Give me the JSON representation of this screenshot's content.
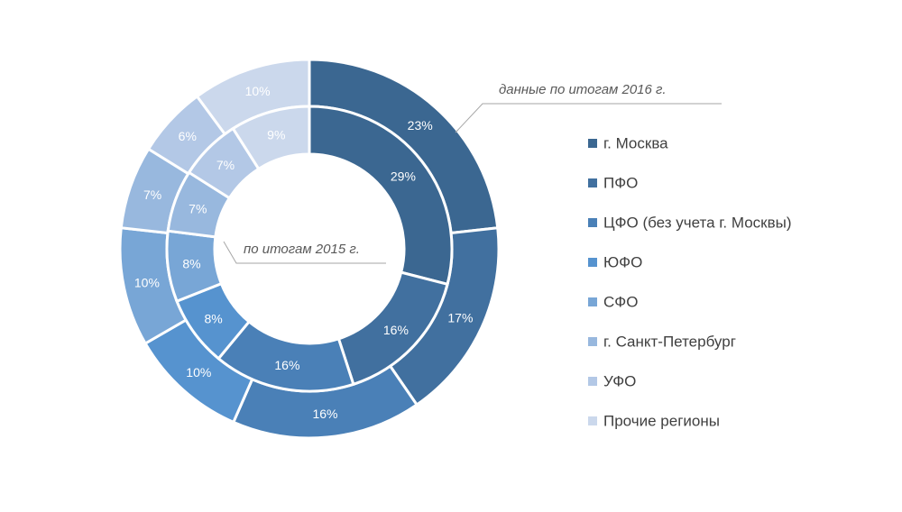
{
  "chart_data": {
    "type": "donut",
    "categories": [
      "г. Москва",
      "ПФО",
      "ЦФО (без учета г. Москвы)",
      "ЮФО",
      "СФО",
      "г. Санкт-Петербург",
      "УФО",
      "Прочие регионы"
    ],
    "series": [
      {
        "name": "данные по итогам 2016 г.",
        "ring": "outer",
        "values": [
          23,
          17,
          16,
          10,
          10,
          7,
          6,
          10
        ]
      },
      {
        "name": "по итогам 2015 г.",
        "ring": "inner",
        "values": [
          29,
          16,
          16,
          8,
          8,
          7,
          7,
          9
        ]
      }
    ],
    "colors": [
      "#3b6791",
      "#41709f",
      "#4a80b7",
      "#5693cf",
      "#78a6d6",
      "#98b8de",
      "#b3c8e6",
      "#cbd8ec"
    ],
    "label_colors": [
      "#ffffff",
      "#ffffff",
      "#ffffff",
      "#ffffff",
      "#ffffff",
      "#ffffff",
      "#ffffff",
      "#ffffff"
    ],
    "unit": "%",
    "legend_position": "right"
  }
}
